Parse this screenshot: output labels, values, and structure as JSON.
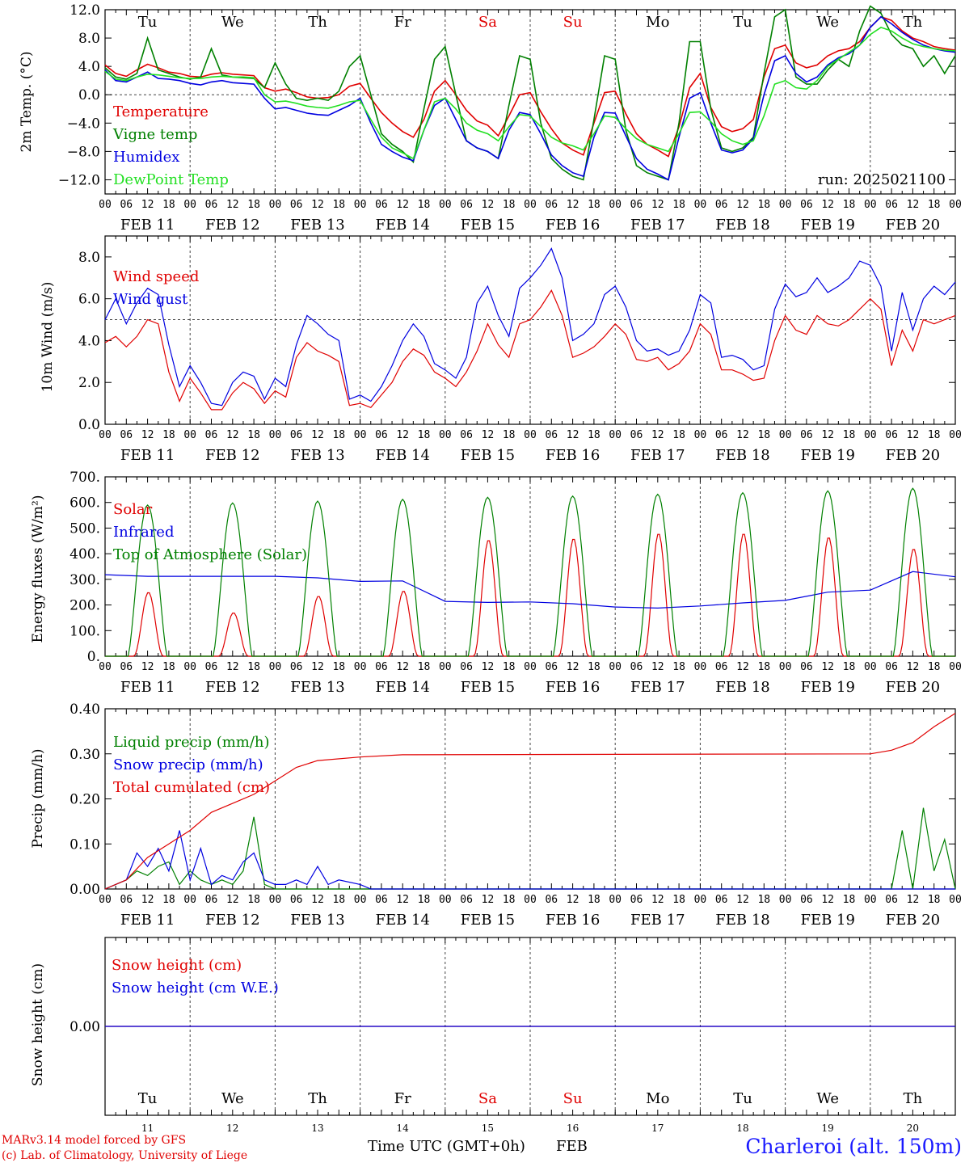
{
  "meta": {
    "model_line1": "MARv3.14 model forced by GFS",
    "model_line2": "(c) Lab. of Climatology, University of Liege",
    "time_axis_label": "Time UTC (GMT+0h)",
    "month_label": "FEB",
    "location": "Charleroi (alt. 150m)",
    "colors": {
      "red": "#e00000",
      "blue": "#0000e0",
      "green": "#008000",
      "lightgreen": "#22e022",
      "weekend": "#e00000"
    }
  },
  "x_axis": {
    "hour_ticks": [
      "00",
      "06",
      "12",
      "18"
    ],
    "end_tick": "00",
    "date_labels": [
      "FEB 11",
      "FEB 12",
      "FEB 13",
      "FEB 14",
      "FEB 15",
      "FEB 16",
      "FEB 17",
      "FEB 18",
      "FEB 19",
      "FEB 20"
    ],
    "days": [
      "Tu",
      "We",
      "Th",
      "Fr",
      "Sa",
      "Su",
      "Mo",
      "Tu",
      "We",
      "Th"
    ],
    "weekend_days": [
      4,
      5
    ],
    "day_numbers": [
      "11",
      "12",
      "13",
      "14",
      "15",
      "16",
      "17",
      "18",
      "19",
      "20"
    ]
  },
  "chart_data": [
    {
      "type": "line",
      "ylabel": "2m Temp. (°C)",
      "ylim": [
        -14,
        12
      ],
      "yticks": [
        "12.0",
        "8.0",
        "4.0",
        "0.0",
        "−4.0",
        "−8.0",
        "−12.0"
      ],
      "ytick_values": [
        12,
        8,
        4,
        0,
        -4,
        -8,
        -12
      ],
      "ref_line": 0,
      "annotation": "run: 2025021100",
      "x_hours": [
        0,
        3,
        6,
        9,
        12,
        15,
        18,
        21,
        24,
        27,
        30,
        33,
        36,
        39,
        42,
        45,
        48,
        51,
        54,
        57,
        60,
        63,
        66,
        69,
        72,
        75,
        78,
        81,
        84,
        87,
        90,
        93,
        96,
        99,
        102,
        105,
        108,
        111,
        114,
        117,
        120,
        123,
        126,
        129,
        132,
        135,
        138,
        141,
        144,
        147,
        150,
        153,
        156,
        159,
        162,
        165,
        168,
        171,
        174,
        177,
        180,
        183,
        186,
        189,
        192,
        195,
        198,
        201,
        204,
        207,
        210,
        213,
        216,
        219,
        222,
        225,
        228,
        231,
        234,
        237,
        240
      ],
      "series": [
        {
          "name": "Temperature",
          "color": "#e00000",
          "values": [
            4.2,
            3.0,
            2.6,
            3.5,
            4.3,
            3.8,
            3.2,
            3.0,
            2.6,
            2.5,
            2.9,
            3.1,
            2.9,
            2.8,
            2.7,
            1.0,
            0.5,
            0.8,
            0.3,
            -0.3,
            -0.5,
            -0.4,
            0.0,
            1.2,
            1.6,
            -0.5,
            -2.5,
            -4.0,
            -5.2,
            -6.0,
            -3.5,
            0.5,
            2.0,
            0.0,
            -2.2,
            -3.7,
            -4.3,
            -5.8,
            -3.0,
            0.0,
            0.3,
            -2.4,
            -4.8,
            -6.8,
            -7.8,
            -8.5,
            -4.0,
            0.3,
            0.5,
            -2.7,
            -5.5,
            -7.0,
            -7.8,
            -8.7,
            -4.5,
            1.0,
            3.0,
            -1.8,
            -4.5,
            -5.2,
            -4.8,
            -3.5,
            2.5,
            6.5,
            7.0,
            4.5,
            3.8,
            4.2,
            5.5,
            6.2,
            6.5,
            7.5,
            9.5,
            11.0,
            10.5,
            9.0,
            8.0,
            7.5,
            6.8,
            6.5,
            6.3
          ]
        },
        {
          "name": "Vigne temp",
          "color": "#008000",
          "values": [
            3.8,
            2.5,
            2.2,
            3.0,
            8.0,
            3.5,
            3.0,
            2.5,
            2.2,
            2.5,
            6.5,
            2.8,
            2.5,
            2.4,
            2.3,
            1.0,
            4.5,
            1.5,
            -0.5,
            -0.8,
            -0.5,
            -0.8,
            0.5,
            4.0,
            5.5,
            0.0,
            -5.5,
            -7.0,
            -8.0,
            -9.5,
            -2.0,
            5.0,
            6.8,
            0.0,
            -6.5,
            -7.5,
            -8.0,
            -9.0,
            -1.5,
            5.5,
            5.0,
            -4.0,
            -9.0,
            -10.5,
            -11.5,
            -12.0,
            -3.5,
            5.5,
            5.0,
            -5.0,
            -10.0,
            -11.0,
            -11.5,
            -12.0,
            -4.0,
            7.5,
            7.5,
            -2.0,
            -7.5,
            -8.0,
            -7.5,
            -6.0,
            3.0,
            11.0,
            12.0,
            2.5,
            1.5,
            1.5,
            3.5,
            5.0,
            4.0,
            9.0,
            12.5,
            11.5,
            8.5,
            7.0,
            6.5,
            4.0,
            5.5,
            3.0,
            5.5
          ]
        },
        {
          "name": "Humidex",
          "color": "#0000e0",
          "values": [
            3.5,
            2.0,
            1.8,
            2.5,
            3.2,
            2.3,
            2.2,
            2.0,
            1.6,
            1.4,
            1.8,
            2.0,
            1.7,
            1.6,
            1.5,
            -0.5,
            -2.0,
            -1.8,
            -2.2,
            -2.6,
            -2.8,
            -2.9,
            -2.2,
            -1.5,
            -0.5,
            -4.0,
            -7.0,
            -8.0,
            -8.8,
            -9.3,
            -5.0,
            -1.5,
            -0.5,
            -3.5,
            -6.5,
            -7.5,
            -8.0,
            -9.0,
            -5.0,
            -2.5,
            -2.8,
            -5.5,
            -8.5,
            -10.0,
            -11.0,
            -11.5,
            -6.0,
            -2.5,
            -2.6,
            -5.8,
            -9.0,
            -10.5,
            -11.2,
            -12.0,
            -6.0,
            -0.5,
            0.3,
            -4.0,
            -7.8,
            -8.2,
            -7.8,
            -6.2,
            0.0,
            4.8,
            5.5,
            3.0,
            1.8,
            2.5,
            4.2,
            5.2,
            5.8,
            7.0,
            9.5,
            11.0,
            10.0,
            8.8,
            7.8,
            7.0,
            6.5,
            6.2,
            6.0
          ]
        },
        {
          "name": "DewPoint Temp",
          "color": "#22e022",
          "values": [
            3.3,
            2.2,
            2.0,
            2.5,
            2.9,
            2.8,
            2.6,
            2.4,
            2.3,
            2.3,
            2.5,
            2.6,
            2.5,
            2.5,
            2.4,
            0.0,
            -1.0,
            -0.9,
            -1.2,
            -1.6,
            -1.8,
            -1.9,
            -1.5,
            -1.0,
            -0.8,
            -3.5,
            -6.0,
            -7.5,
            -8.2,
            -9.0,
            -5.0,
            -1.0,
            -0.5,
            -2.0,
            -4.0,
            -5.0,
            -5.5,
            -6.5,
            -4.5,
            -2.8,
            -3.0,
            -4.5,
            -6.0,
            -6.8,
            -7.2,
            -7.8,
            -5.5,
            -3.0,
            -3.2,
            -4.8,
            -6.2,
            -7.0,
            -7.5,
            -8.0,
            -5.5,
            -2.5,
            -2.4,
            -3.8,
            -5.5,
            -6.5,
            -7.0,
            -6.5,
            -3.0,
            1.5,
            2.0,
            1.0,
            0.8,
            2.0,
            4.0,
            5.0,
            6.0,
            7.0,
            8.5,
            9.5,
            9.0,
            8.0,
            7.2,
            6.8,
            6.5,
            6.3,
            6.2
          ]
        }
      ]
    },
    {
      "type": "line",
      "ylabel": "10m Wind (m/s)",
      "ylim": [
        0,
        9
      ],
      "yticks": [
        "8.0",
        "6.0",
        "4.0",
        "2.0",
        "0.0"
      ],
      "ytick_values": [
        8,
        6,
        4,
        2,
        0
      ],
      "ref_line": 5,
      "x_hours": [
        0,
        3,
        6,
        9,
        12,
        15,
        18,
        21,
        24,
        27,
        30,
        33,
        36,
        39,
        42,
        45,
        48,
        51,
        54,
        57,
        60,
        63,
        66,
        69,
        72,
        75,
        78,
        81,
        84,
        87,
        90,
        93,
        96,
        99,
        102,
        105,
        108,
        111,
        114,
        117,
        120,
        123,
        126,
        129,
        132,
        135,
        138,
        141,
        144,
        147,
        150,
        153,
        156,
        159,
        162,
        165,
        168,
        171,
        174,
        177,
        180,
        183,
        186,
        189,
        192,
        195,
        198,
        201,
        204,
        207,
        210,
        213,
        216,
        219,
        222,
        225,
        228,
        231,
        234,
        237,
        240
      ],
      "series": [
        {
          "name": "Wind speed",
          "color": "#e00000",
          "values": [
            3.9,
            4.2,
            3.7,
            4.2,
            5.0,
            4.8,
            2.5,
            1.1,
            2.2,
            1.5,
            0.7,
            0.7,
            1.5,
            2.0,
            1.7,
            1.0,
            1.6,
            1.3,
            3.2,
            3.9,
            3.5,
            3.3,
            3.0,
            0.9,
            1.0,
            0.8,
            1.4,
            2.0,
            3.0,
            3.6,
            3.3,
            2.5,
            2.2,
            1.8,
            2.5,
            3.5,
            4.8,
            3.8,
            3.2,
            4.8,
            5.0,
            5.6,
            6.4,
            5.2,
            3.2,
            3.4,
            3.7,
            4.2,
            4.8,
            4.3,
            3.1,
            3.0,
            3.2,
            2.6,
            2.9,
            3.5,
            4.8,
            4.3,
            2.6,
            2.6,
            2.4,
            2.1,
            2.2,
            4.0,
            5.2,
            4.5,
            4.3,
            5.2,
            4.8,
            4.7,
            5.0,
            5.5,
            6.0,
            5.5,
            2.8,
            4.5,
            3.5,
            5.0,
            4.8,
            5.0,
            5.2
          ]
        },
        {
          "name": "Wind gust",
          "color": "#0000e0",
          "values": [
            5.0,
            6.0,
            4.8,
            5.8,
            6.5,
            6.2,
            3.8,
            1.8,
            2.8,
            2.0,
            1.0,
            0.9,
            2.0,
            2.5,
            2.3,
            1.2,
            2.2,
            1.8,
            3.8,
            5.2,
            4.8,
            4.3,
            4.0,
            1.2,
            1.4,
            1.1,
            1.8,
            2.8,
            4.0,
            4.8,
            4.2,
            2.9,
            2.6,
            2.2,
            3.2,
            5.8,
            6.6,
            5.2,
            4.2,
            6.5,
            7.0,
            7.6,
            8.4,
            7.0,
            4.0,
            4.3,
            4.8,
            6.2,
            6.6,
            5.6,
            4.0,
            3.5,
            3.6,
            3.3,
            3.5,
            4.5,
            6.2,
            5.8,
            3.2,
            3.3,
            3.1,
            2.6,
            2.8,
            5.5,
            6.7,
            6.1,
            6.3,
            7.0,
            6.3,
            6.6,
            7.0,
            7.8,
            7.6,
            6.6,
            3.5,
            6.3,
            4.5,
            6.0,
            6.6,
            6.2,
            6.8
          ]
        }
      ]
    },
    {
      "type": "line",
      "ylabel": "Energy fluxes (W/m²)",
      "ylim": [
        0,
        700
      ],
      "yticks": [
        "700.",
        "600.",
        "500.",
        "400.",
        "300.",
        "200.",
        "100.",
        "0."
      ],
      "ytick_values": [
        700,
        600,
        500,
        400,
        300,
        200,
        100,
        0
      ],
      "series": [
        {
          "name": "Solar",
          "color": "#e00000",
          "peaks": [
            250,
            170,
            235,
            255,
            455,
            460,
            480,
            480,
            465,
            420
          ]
        },
        {
          "name": "Infrared",
          "color": "#0000e0",
          "x_hours": [
            0,
            12,
            24,
            36,
            48,
            60,
            72,
            84,
            96,
            108,
            120,
            132,
            144,
            156,
            168,
            180,
            192,
            204,
            216,
            228,
            240
          ],
          "values": [
            318,
            312,
            312,
            312,
            312,
            306,
            292,
            294,
            214,
            210,
            212,
            205,
            192,
            188,
            196,
            208,
            218,
            250,
            258,
            330,
            310
          ]
        },
        {
          "name": "Top of Atmosphere (Solar)",
          "color": "#008000",
          "peaks": [
            590,
            598,
            605,
            612,
            620,
            625,
            632,
            638,
            645,
            655
          ]
        }
      ]
    },
    {
      "type": "line",
      "ylabel": "Precip (mm/h)",
      "ylim": [
        0,
        0.4
      ],
      "yticks": [
        "0.40",
        "0.30",
        "0.20",
        "0.10",
        "0.00"
      ],
      "ytick_values": [
        0.4,
        0.3,
        0.2,
        0.1,
        0
      ],
      "series": [
        {
          "name": "Liquid precip (mm/h)",
          "color": "#008000",
          "x_hours": [
            0,
            6,
            9,
            12,
            15,
            18,
            21,
            24,
            27,
            30,
            33,
            36,
            39,
            42,
            45,
            48,
            51,
            54,
            57,
            60,
            222,
            225,
            228,
            231,
            234,
            237,
            240
          ],
          "values": [
            0,
            0.02,
            0.04,
            0.03,
            0.05,
            0.06,
            0.01,
            0.04,
            0.02,
            0.01,
            0.02,
            0.01,
            0.04,
            0.16,
            0.01,
            0,
            0,
            0,
            0,
            0,
            0,
            0.13,
            0,
            0.18,
            0.04,
            0.11,
            0
          ]
        },
        {
          "name": "Snow precip (mm/h)",
          "color": "#0000e0",
          "x_hours": [
            0,
            6,
            9,
            12,
            15,
            18,
            21,
            24,
            27,
            30,
            33,
            36,
            39,
            42,
            45,
            48,
            51,
            54,
            57,
            60,
            63,
            66,
            72,
            75,
            78,
            240
          ],
          "values": [
            0,
            0.02,
            0.08,
            0.05,
            0.09,
            0.04,
            0.13,
            0.02,
            0.09,
            0.01,
            0.03,
            0.02,
            0.06,
            0.08,
            0.02,
            0.01,
            0.01,
            0.02,
            0.01,
            0.05,
            0.01,
            0.02,
            0.01,
            0,
            0,
            0
          ]
        },
        {
          "name": "Total cumulated (cm)",
          "color": "#e00000",
          "x_hours": [
            0,
            6,
            12,
            18,
            24,
            30,
            36,
            42,
            48,
            54,
            60,
            72,
            84,
            216,
            222,
            228,
            234,
            240
          ],
          "values": [
            0,
            0.02,
            0.07,
            0.1,
            0.13,
            0.17,
            0.19,
            0.21,
            0.24,
            0.27,
            0.285,
            0.293,
            0.298,
            0.3,
            0.308,
            0.325,
            0.36,
            0.39
          ]
        }
      ]
    },
    {
      "type": "line",
      "ylabel": "Snow height (cm)",
      "ylim": [
        -1,
        1
      ],
      "yticks": [
        "0.00"
      ],
      "ytick_values": [
        0
      ],
      "series": [
        {
          "name": "Snow height (cm)",
          "color": "#e00000",
          "x_hours": [
            0,
            240
          ],
          "values": [
            0,
            0
          ]
        },
        {
          "name": "Snow height (cm W.E.)",
          "color": "#0000e0",
          "x_hours": [
            0,
            240
          ],
          "values": [
            0,
            0
          ]
        }
      ]
    }
  ]
}
